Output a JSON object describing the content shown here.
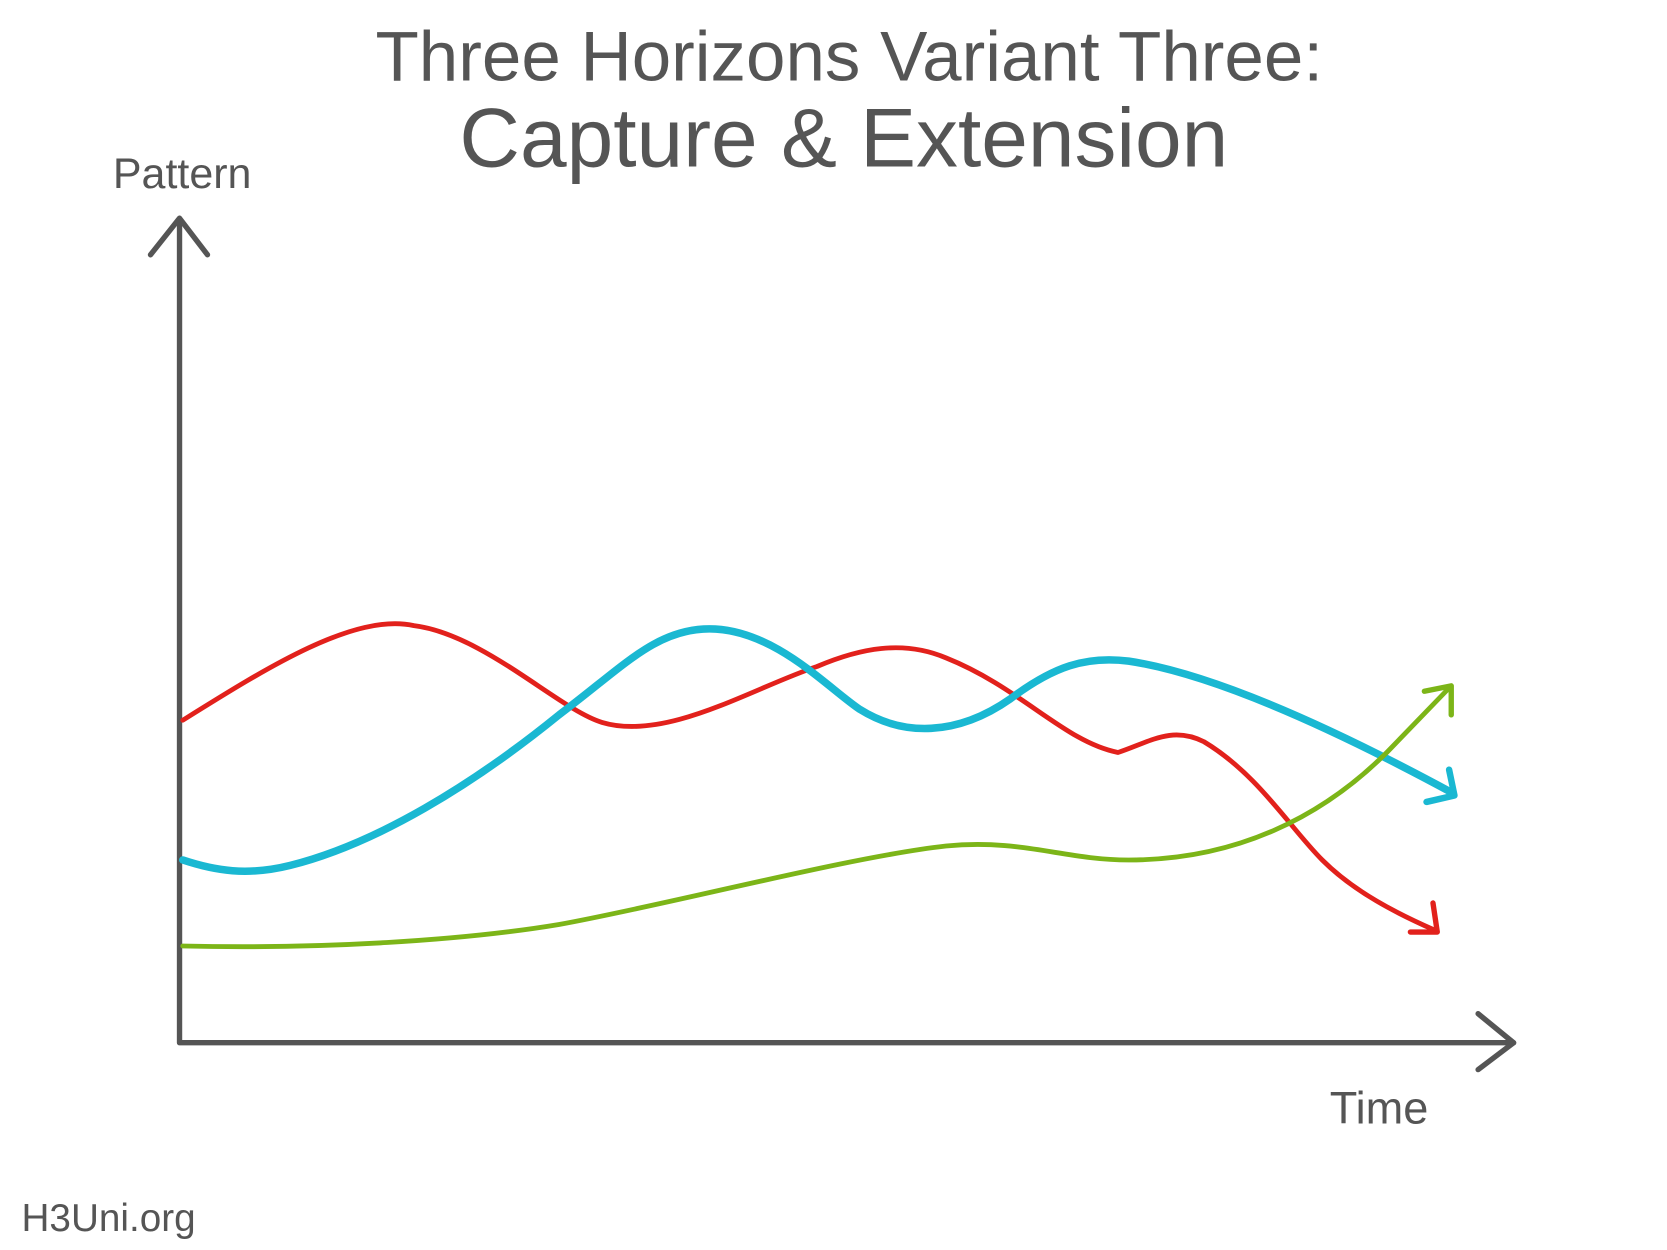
{
  "title": {
    "line1": "Three Horizons Variant Three:",
    "line2": "Capture & Extension"
  },
  "axes": {
    "y_label": "Pattern",
    "x_label": "Time"
  },
  "footer": "H3Uni.org"
}
